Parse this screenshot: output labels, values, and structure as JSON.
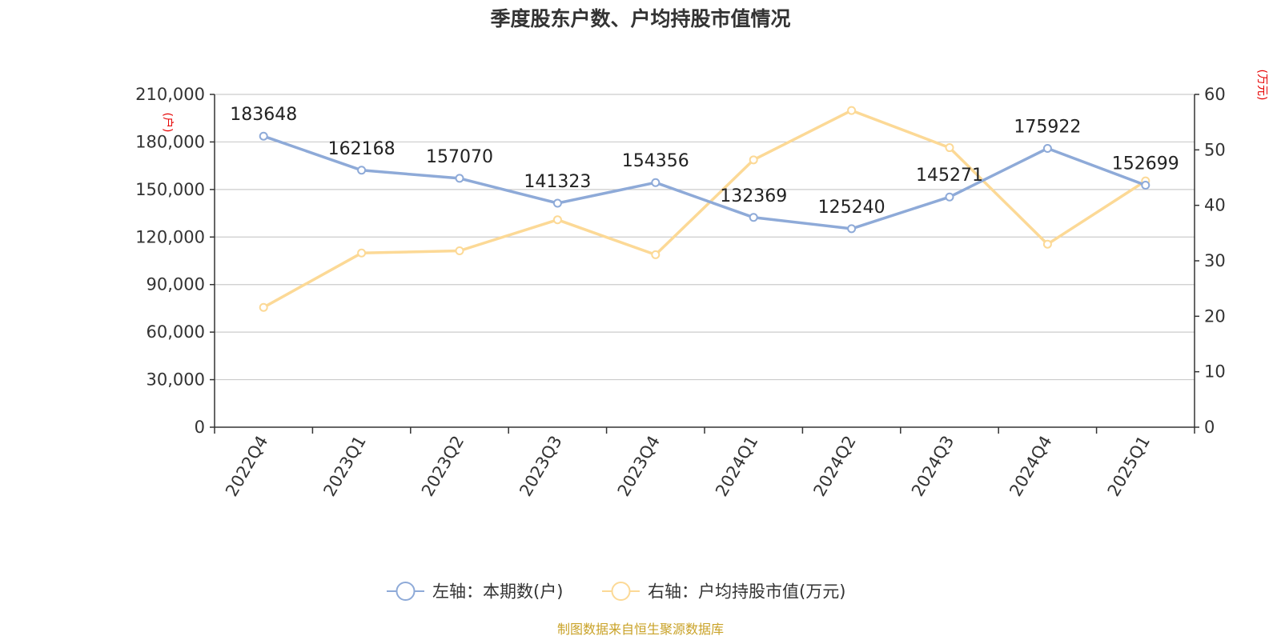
{
  "chart_data": {
    "type": "line",
    "title": "季度股东户数、户均持股市值情况",
    "categories": [
      "2022Q4",
      "2023Q1",
      "2023Q2",
      "2023Q3",
      "2023Q4",
      "2024Q1",
      "2024Q2",
      "2024Q3",
      "2024Q4",
      "2025Q1"
    ],
    "left_axis": {
      "unit": "(户)",
      "range": [
        0,
        210000
      ],
      "ticks": [
        "0",
        "30,000",
        "60,000",
        "90,000",
        "120,000",
        "150,000",
        "180,000",
        "210,000"
      ],
      "tick_values": [
        0,
        30000,
        60000,
        90000,
        120000,
        150000,
        180000,
        210000
      ]
    },
    "right_axis": {
      "unit": "(万元)",
      "range": [
        0,
        60
      ],
      "ticks": [
        "0",
        "10",
        "20",
        "30",
        "40",
        "50",
        "60"
      ],
      "tick_values": [
        0,
        10,
        20,
        30,
        40,
        50,
        60
      ]
    },
    "series": [
      {
        "name": "左轴：本期数(户)",
        "axis": "left",
        "color": "#8eaad8",
        "values": [
          183648,
          162168,
          157070,
          141323,
          154356,
          132369,
          125240,
          145271,
          175922,
          152699
        ],
        "labels": [
          "183648",
          "162168",
          "157070",
          "141323",
          "154356",
          "132369",
          "125240",
          "145271",
          "175922",
          "152699"
        ]
      },
      {
        "name": "右轴：户均持股市值(万元)",
        "axis": "right",
        "color": "#fcd996",
        "values": [
          21.6,
          31.4,
          31.8,
          37.4,
          31.1,
          48.2,
          57.1,
          50.4,
          33.0,
          44.4
        ]
      }
    ],
    "grid": true,
    "legend_position": "bottom-center"
  },
  "source_note": "制图数据来自恒生聚源数据库"
}
